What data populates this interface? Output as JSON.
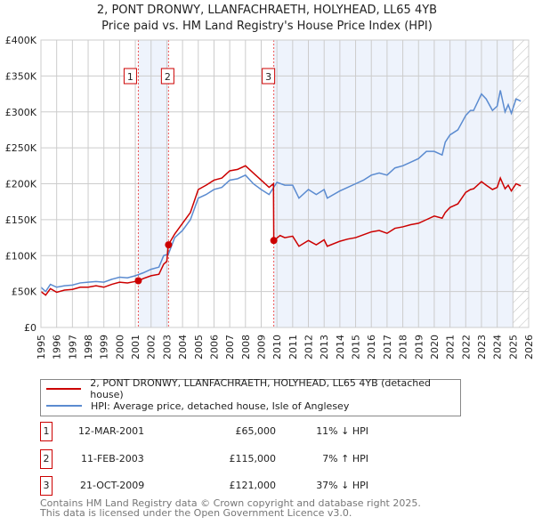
{
  "title": "2, PONT DRONWY, LLANFACHRAETH, HOLYHEAD, LL65 4YB",
  "subtitle": "Price paid vs. HM Land Registry's House Price Index (HPI)",
  "chart_data": {
    "type": "line",
    "xlim": [
      1995,
      2026
    ],
    "ylim": [
      0,
      400000
    ],
    "yticks": [
      0,
      50000,
      100000,
      150000,
      200000,
      250000,
      300000,
      350000,
      400000
    ],
    "ytick_labels": [
      "£0",
      "£50K",
      "£100K",
      "£150K",
      "£200K",
      "£250K",
      "£300K",
      "£350K",
      "£400K"
    ],
    "xticks": [
      1995,
      1996,
      1997,
      1998,
      1999,
      2000,
      2001,
      2002,
      2003,
      2004,
      2005,
      2006,
      2007,
      2008,
      2009,
      2010,
      2011,
      2012,
      2013,
      2014,
      2015,
      2016,
      2017,
      2018,
      2019,
      2020,
      2021,
      2022,
      2023,
      2024,
      2025,
      2026
    ],
    "grid": true,
    "series": [
      {
        "name": "2, PONT DRONWY, LLANFACHRAETH, HOLYHEAD, LL65 4YB (detached house)",
        "color": "#cc0000",
        "x": [
          1995,
          1995.3,
          1995.6,
          1996,
          1996.5,
          1997,
          1997.5,
          1998,
          1998.5,
          1999,
          1999.5,
          2000,
          2000.5,
          2001,
          2001.2,
          2001.5,
          2002,
          2002.5,
          2002.8,
          2003.0,
          2003.1,
          2003.5,
          2004,
          2004.5,
          2005,
          2005.5,
          2006,
          2006.5,
          2007,
          2007.5,
          2008,
          2008.5,
          2009,
          2009.5,
          2009.78,
          2009.8,
          2010.2,
          2010.5,
          2011,
          2011.4,
          2012,
          2012.5,
          2013,
          2013.2,
          2014,
          2014.5,
          2015,
          2015.5,
          2016,
          2016.5,
          2017,
          2017.5,
          2018,
          2018.5,
          2019,
          2019.5,
          2020,
          2020.5,
          2020.7,
          2021,
          2021.5,
          2022,
          2022.3,
          2022.5,
          2023,
          2023.3,
          2023.7,
          2024,
          2024.2,
          2024.5,
          2024.7,
          2024.9,
          2025.2,
          2025.5
        ],
        "y": [
          50000,
          45000,
          54000,
          49000,
          52000,
          53000,
          56000,
          56000,
          58000,
          56000,
          60000,
          63000,
          62000,
          64000,
          65000,
          68000,
          72000,
          74000,
          88000,
          92000,
          115000,
          130000,
          145000,
          160000,
          192000,
          198000,
          205000,
          208000,
          218000,
          220000,
          225000,
          215000,
          205000,
          195000,
          200000,
          121000,
          128000,
          125000,
          127000,
          113000,
          121000,
          115000,
          122000,
          113000,
          120000,
          123000,
          125000,
          129000,
          133000,
          135000,
          131000,
          138000,
          140000,
          143000,
          145000,
          150000,
          155000,
          152000,
          160000,
          167000,
          172000,
          188000,
          192000,
          193000,
          203000,
          198000,
          192000,
          195000,
          208000,
          193000,
          198000,
          190000,
          200000,
          197000
        ]
      },
      {
        "name": "HPI: Average price, detached house, Isle of Anglesey",
        "color": "#5b8bd0",
        "x": [
          1995,
          1995.3,
          1995.6,
          1996,
          1996.5,
          1997,
          1997.5,
          1998,
          1998.5,
          1999,
          1999.5,
          2000,
          2000.5,
          2001,
          2001.5,
          2002,
          2002.5,
          2002.8,
          2003.1,
          2003.5,
          2004,
          2004.5,
          2005,
          2005.5,
          2006,
          2006.5,
          2007,
          2007.5,
          2008,
          2008.5,
          2009,
          2009.5,
          2010,
          2010.5,
          2011,
          2011.4,
          2012,
          2012.5,
          2013,
          2013.2,
          2014,
          2014.5,
          2015,
          2015.5,
          2016,
          2016.5,
          2017,
          2017.5,
          2018,
          2018.5,
          2019,
          2019.5,
          2020,
          2020.5,
          2020.7,
          2021,
          2021.5,
          2022,
          2022.3,
          2022.5,
          2023,
          2023.3,
          2023.7,
          2024,
          2024.2,
          2024.5,
          2024.7,
          2024.9,
          2025.2,
          2025.5
        ],
        "y": [
          56000,
          50000,
          60000,
          56000,
          58000,
          59000,
          62000,
          63000,
          64000,
          63000,
          67000,
          70000,
          69000,
          72000,
          76000,
          81000,
          84000,
          100000,
          102000,
          125000,
          135000,
          150000,
          180000,
          185000,
          192000,
          195000,
          205000,
          207000,
          212000,
          200000,
          192000,
          185000,
          202000,
          198000,
          198000,
          180000,
          192000,
          185000,
          192000,
          180000,
          190000,
          195000,
          200000,
          205000,
          212000,
          215000,
          212000,
          222000,
          225000,
          230000,
          235000,
          245000,
          245000,
          240000,
          258000,
          268000,
          275000,
          295000,
          302000,
          302000,
          325000,
          318000,
          302000,
          308000,
          330000,
          300000,
          310000,
          298000,
          318000,
          315000
        ]
      }
    ],
    "sales": [
      {
        "label": "1",
        "x": 2001.19,
        "price": 65000,
        "date": "12-MAR-2001",
        "price_text": "£65,000",
        "hpi_text": "11% ↓ HPI"
      },
      {
        "label": "2",
        "x": 2003.11,
        "price": 115000,
        "date": "11-FEB-2003",
        "price_text": "£115,000",
        "hpi_text": "7% ↑ HPI"
      },
      {
        "label": "3",
        "x": 2009.8,
        "price": 121000,
        "date": "21-OCT-2009",
        "price_text": "£121,000",
        "hpi_text": "37% ↓ HPI"
      }
    ],
    "shaded_ranges": [
      [
        2001.19,
        2003.11
      ],
      [
        2009.8,
        2025.0
      ]
    ],
    "hatched_range": [
      2025.0,
      2026
    ]
  },
  "footer": [
    "Contains HM Land Registry data © Crown copyright and database right 2025.",
    "This data is licensed under the Open Government Licence v3.0."
  ]
}
